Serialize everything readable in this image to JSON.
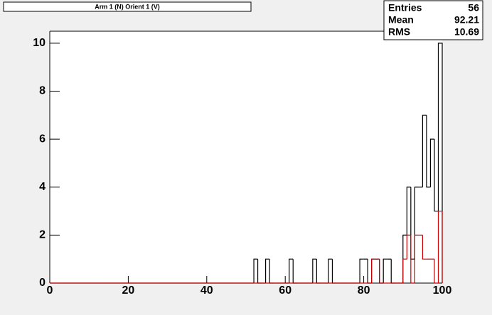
{
  "chart_data": {
    "type": "histogram",
    "title": "Arm 1 (N) Orient 1 (V)",
    "stats": {
      "labels": [
        "Entries",
        "Mean",
        "RMS"
      ],
      "values": [
        56,
        92.21,
        10.69
      ]
    },
    "bins": [
      0,
      1,
      2,
      3,
      4,
      5,
      6,
      7,
      8,
      9,
      10,
      11,
      12,
      13,
      14,
      15,
      16,
      17,
      18,
      19,
      20,
      21,
      22,
      23,
      24,
      25,
      26,
      27,
      28,
      29,
      30,
      31,
      32,
      33,
      34,
      35,
      36,
      37,
      38,
      39,
      40,
      41,
      42,
      43,
      44,
      45,
      46,
      47,
      48,
      49,
      50,
      51,
      52,
      53,
      54,
      55,
      56,
      57,
      58,
      59,
      60,
      61,
      62,
      63,
      64,
      65,
      66,
      67,
      68,
      69,
      70,
      71,
      72,
      73,
      74,
      75,
      76,
      77,
      78,
      79,
      80,
      81,
      82,
      83,
      84,
      85,
      86,
      87,
      88,
      89,
      90,
      91,
      92,
      93,
      94,
      95,
      96,
      97,
      98,
      99,
      100
    ],
    "series": [
      {
        "color": "#000000",
        "values": [
          0,
          0,
          0,
          0,
          0,
          0,
          0,
          0,
          0,
          0,
          0,
          0,
          0,
          0,
          0,
          0,
          0,
          0,
          0,
          0,
          0,
          0,
          0,
          0,
          0,
          0,
          0,
          0,
          0,
          0,
          0,
          0,
          0,
          0,
          0,
          0,
          0,
          0,
          0,
          0,
          0,
          0,
          0,
          0,
          0,
          0,
          0,
          0,
          0,
          0,
          0,
          0,
          1,
          0,
          0,
          1,
          0,
          0,
          0,
          0,
          0,
          1,
          0,
          0,
          0,
          0,
          0,
          1,
          0,
          0,
          0,
          1,
          0,
          0,
          0,
          0,
          0,
          0,
          0,
          1,
          1,
          0,
          1,
          1,
          0,
          1,
          1,
          0,
          0,
          0,
          2,
          4,
          1,
          4,
          4,
          7,
          4,
          6,
          3,
          10
        ]
      },
      {
        "color": "#cc0000",
        "values": [
          0,
          0,
          0,
          0,
          0,
          0,
          0,
          0,
          0,
          0,
          0,
          0,
          0,
          0,
          0,
          0,
          0,
          0,
          0,
          0,
          0,
          0,
          0,
          0,
          0,
          0,
          0,
          0,
          0,
          0,
          0,
          0,
          0,
          0,
          0,
          0,
          0,
          0,
          0,
          0,
          0,
          0,
          0,
          0,
          0,
          0,
          0,
          0,
          0,
          0,
          0,
          0,
          0,
          0,
          0,
          0,
          0,
          0,
          0,
          0,
          0,
          0,
          0,
          0,
          0,
          0,
          0,
          0,
          0,
          0,
          0,
          0,
          0,
          0,
          0,
          0,
          0,
          0,
          0,
          0,
          0,
          0,
          1,
          1,
          0,
          0,
          0,
          0,
          0,
          0,
          1,
          2,
          0,
          2,
          2,
          1,
          1,
          1,
          0,
          3
        ]
      }
    ],
    "xlim": [
      0,
      100
    ],
    "xticks": [
      0,
      20,
      40,
      60,
      80,
      100
    ],
    "ylim": [
      0,
      10.5
    ],
    "yticks": [
      0,
      2,
      4,
      6,
      8,
      10
    ]
  }
}
